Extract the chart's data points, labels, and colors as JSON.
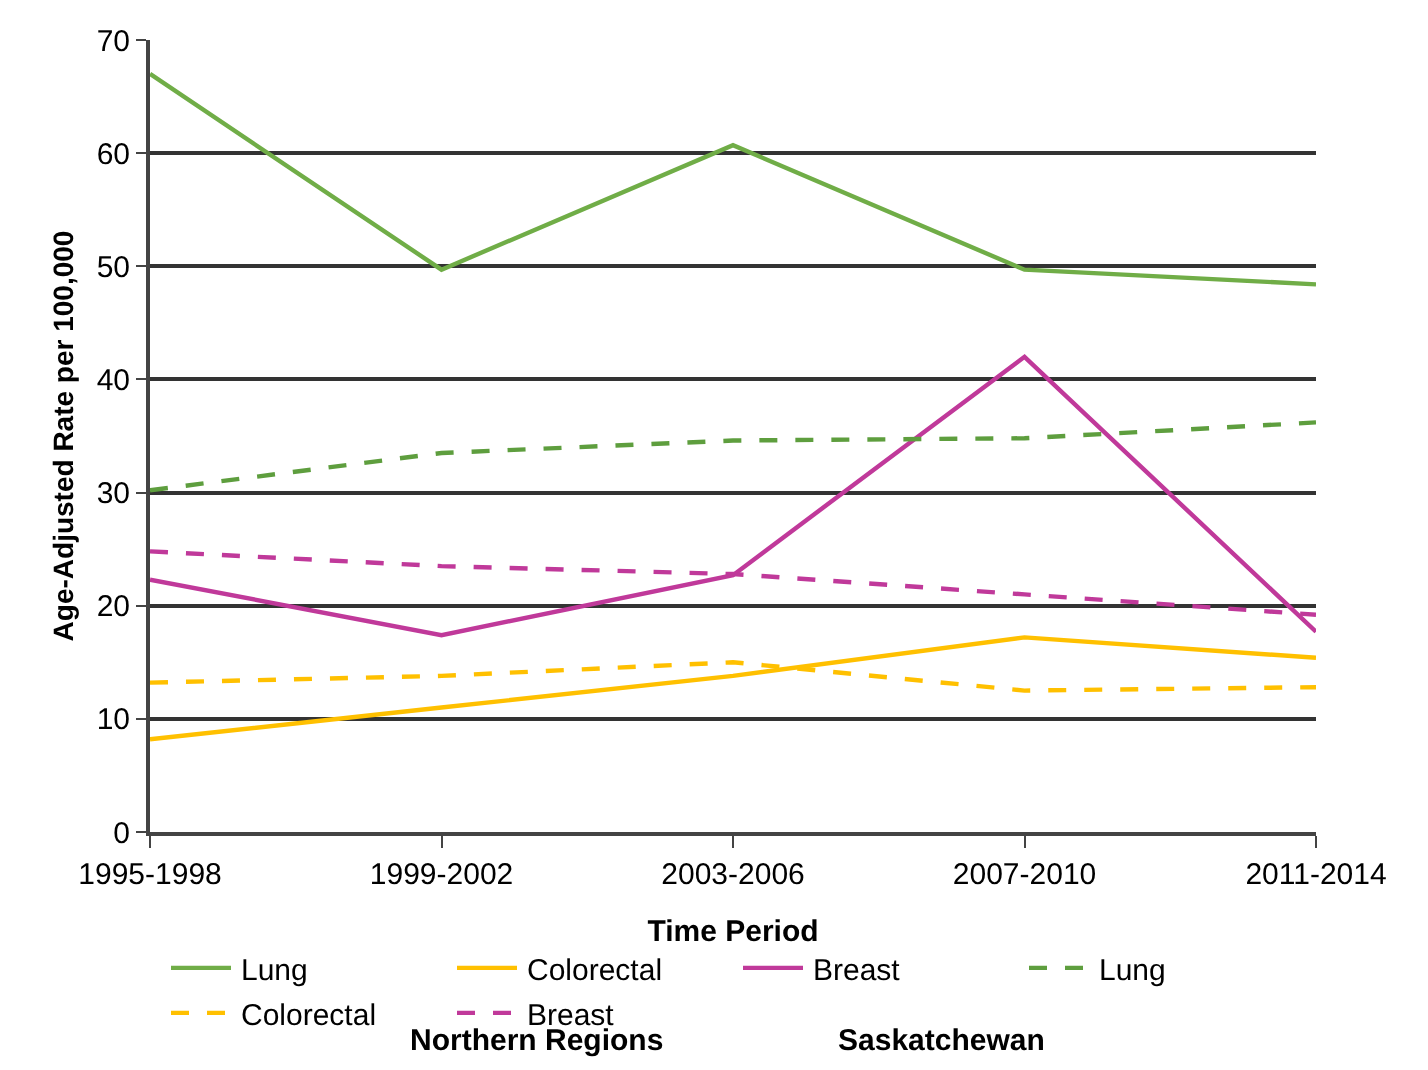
{
  "chart_data": {
    "type": "line",
    "xlabel": "Time Period",
    "ylabel": "Age-Adjusted Rate per 100,000",
    "categories": [
      "1995-1998",
      "1999-2002",
      "2003-2006",
      "2007-2010",
      "2011-2014"
    ],
    "ylim": [
      0,
      70
    ],
    "yticks": [
      0,
      10,
      20,
      30,
      40,
      50,
      60,
      70
    ],
    "grid": "y",
    "legend": "bottom",
    "marker": "none",
    "series": [
      {
        "name": "Lung",
        "color": "#70ad47",
        "line_style": "solid",
        "values": [
          67,
          49.7,
          60.7,
          49.7,
          48.4
        ]
      },
      {
        "name": "Colorectal",
        "color": "#ffc000",
        "line_style": "solid",
        "values": [
          8.2,
          11,
          13.8,
          17.2,
          15.4
        ]
      },
      {
        "name": "Breast",
        "color": "#c0399a",
        "line_style": "solid",
        "values": [
          22.3,
          17.4,
          22.7,
          42,
          17.7
        ]
      },
      {
        "name": "Lung",
        "color": "#5e9e3e",
        "line_style": "dashed",
        "values": [
          30.2,
          33.5,
          34.6,
          34.8,
          36.2
        ]
      },
      {
        "name": "Colorectal",
        "color": "#ffc000",
        "line_style": "dashed",
        "values": [
          13.2,
          13.8,
          15.0,
          12.5,
          12.8
        ]
      },
      {
        "name": "Breast",
        "color": "#c0399a",
        "line_style": "dashed",
        "values": [
          24.8,
          23.5,
          22.8,
          21.0,
          19.2
        ]
      }
    ],
    "annotations": [
      "Northern Regions",
      "Saskatchewan"
    ]
  }
}
